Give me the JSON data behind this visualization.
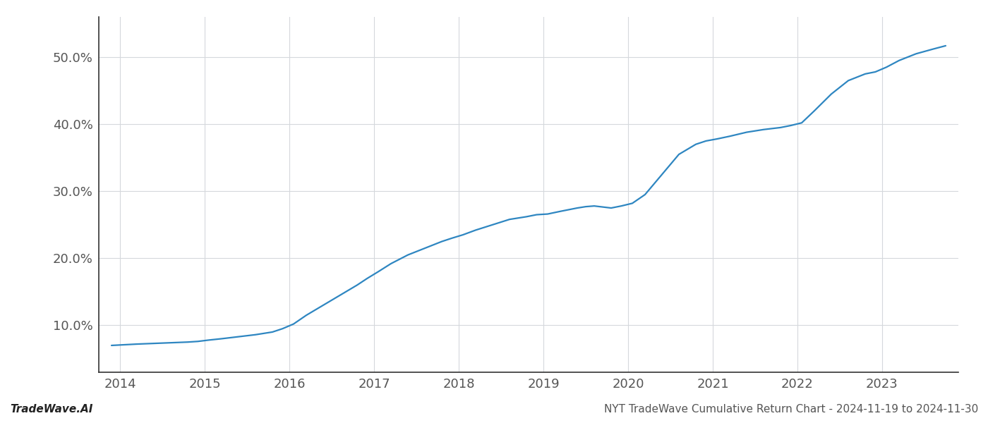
{
  "title": "",
  "footer_left": "TradeWave.AI",
  "footer_right": "NYT TradeWave Cumulative Return Chart - 2024-11-19 to 2024-11-30",
  "line_color": "#2e86c1",
  "background_color": "#ffffff",
  "grid_color": "#d5d8dc",
  "x_years": [
    2014,
    2015,
    2016,
    2017,
    2018,
    2019,
    2020,
    2021,
    2022,
    2023
  ],
  "x_data": [
    2013.9,
    2014.05,
    2014.2,
    2014.4,
    2014.6,
    2014.8,
    2014.92,
    2015.05,
    2015.2,
    2015.4,
    2015.6,
    2015.8,
    2015.92,
    2016.05,
    2016.2,
    2016.4,
    2016.6,
    2016.8,
    2016.92,
    2017.05,
    2017.2,
    2017.4,
    2017.6,
    2017.8,
    2017.92,
    2018.05,
    2018.2,
    2018.4,
    2018.6,
    2018.8,
    2018.92,
    2019.05,
    2019.2,
    2019.4,
    2019.5,
    2019.6,
    2019.8,
    2019.92,
    2020.05,
    2020.2,
    2020.4,
    2020.6,
    2020.8,
    2020.92,
    2021.05,
    2021.2,
    2021.4,
    2021.6,
    2021.8,
    2021.92,
    2022.05,
    2022.2,
    2022.4,
    2022.6,
    2022.8,
    2022.92,
    2023.05,
    2023.2,
    2023.4,
    2023.6,
    2023.75
  ],
  "y_data": [
    7.0,
    7.1,
    7.2,
    7.3,
    7.4,
    7.5,
    7.6,
    7.8,
    8.0,
    8.3,
    8.6,
    9.0,
    9.5,
    10.2,
    11.5,
    13.0,
    14.5,
    16.0,
    17.0,
    18.0,
    19.2,
    20.5,
    21.5,
    22.5,
    23.0,
    23.5,
    24.2,
    25.0,
    25.8,
    26.2,
    26.5,
    26.6,
    27.0,
    27.5,
    27.7,
    27.8,
    27.5,
    27.8,
    28.2,
    29.5,
    32.5,
    35.5,
    37.0,
    37.5,
    37.8,
    38.2,
    38.8,
    39.2,
    39.5,
    39.8,
    40.2,
    42.0,
    44.5,
    46.5,
    47.5,
    47.8,
    48.5,
    49.5,
    50.5,
    51.2,
    51.7
  ],
  "xlim": [
    2013.75,
    2023.9
  ],
  "ylim": [
    3,
    56
  ],
  "yticks": [
    10.0,
    20.0,
    30.0,
    40.0,
    50.0
  ],
  "ytick_labels": [
    "10.0%",
    "20.0%",
    "30.0%",
    "40.0%",
    "50.0%"
  ],
  "spine_color": "#333333",
  "footer_fontsize": 11,
  "tick_fontsize": 13,
  "line_width": 1.6
}
